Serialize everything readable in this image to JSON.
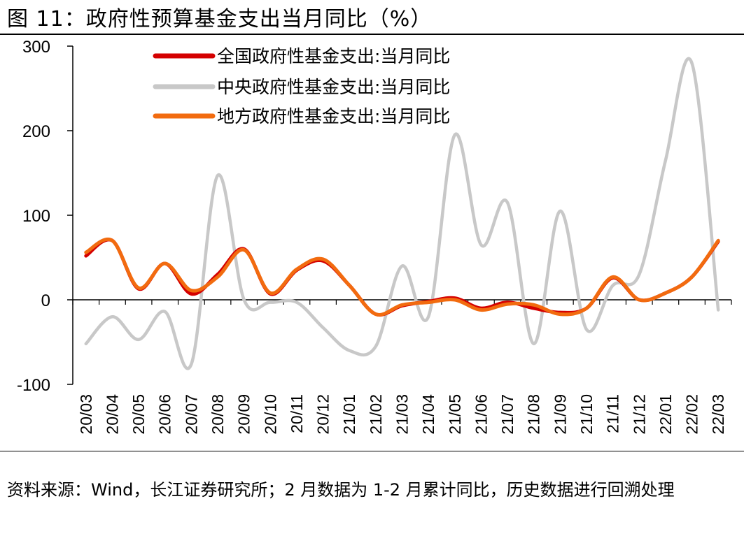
{
  "header": {
    "title": "图 11：政府性预算基金支出当月同比（%）"
  },
  "footer": {
    "source": "资料来源：Wind，长江证券研究所；2 月数据为 1-2 月累计同比，历史数据进行回溯处理"
  },
  "chart_data": {
    "type": "line",
    "title": "图 11：政府性预算基金支出当月同比（%）",
    "xlabel": "",
    "ylabel": "",
    "ylim": [
      -100,
      300
    ],
    "yticks": [
      "-100",
      "0",
      "100",
      "200",
      "300"
    ],
    "grid": false,
    "legend_position": "top-left",
    "categories": [
      "20/03",
      "20/04",
      "20/05",
      "20/06",
      "20/07",
      "20/08",
      "20/09",
      "20/10",
      "20/11",
      "20/12",
      "21/01",
      "21/02",
      "21/03",
      "21/04",
      "21/05",
      "21/06",
      "21/07",
      "21/08",
      "21/09",
      "21/10",
      "21/11",
      "21/12",
      "22/01",
      "22/02",
      "22/03"
    ],
    "series": [
      {
        "name": "全国政府性基金支出:当月同比",
        "color": "#d40000",
        "values": [
          52,
          70,
          13,
          43,
          7,
          30,
          60,
          7,
          35,
          46,
          17,
          -17,
          -7,
          -2,
          2,
          -10,
          -3,
          -10,
          -15,
          -10,
          26,
          0,
          8,
          27,
          69
        ]
      },
      {
        "name": "中央政府性基金支出:当月同比",
        "color": "#c8c8c8",
        "values": [
          -52,
          -20,
          -47,
          -14,
          -76,
          147,
          0,
          -3,
          -3,
          -33,
          -60,
          -55,
          40,
          -20,
          195,
          65,
          115,
          -52,
          105,
          -35,
          17,
          30,
          165,
          280,
          -12
        ]
      },
      {
        "name": "地方政府性基金支出:当月同比",
        "color": "#f26b0f",
        "values": [
          56,
          70,
          14,
          43,
          11,
          27,
          59,
          8,
          36,
          48,
          17,
          -17,
          -6,
          -3,
          0,
          -12,
          -5,
          -6,
          -17,
          -10,
          27,
          0,
          8,
          27,
          70
        ]
      }
    ]
  }
}
